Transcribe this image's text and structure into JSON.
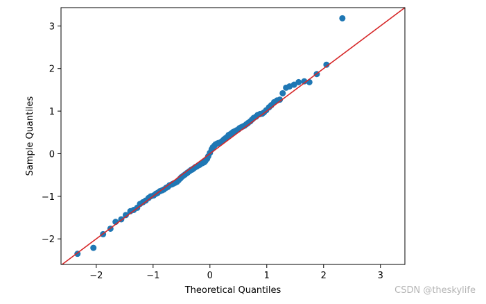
{
  "chart_data": {
    "type": "scatter",
    "title": "",
    "xlabel": "Theoretical Quantiles",
    "ylabel": "Sample Quantiles",
    "xlim": [
      -2.62,
      3.43
    ],
    "ylim": [
      -2.6,
      3.43
    ],
    "xticks": [
      -2,
      -1,
      0,
      1,
      2,
      3
    ],
    "yticks": [
      -2,
      -1,
      0,
      1,
      2,
      3
    ],
    "xtick_labels": [
      "−2",
      "−1",
      "0",
      "1",
      "2",
      "3"
    ],
    "ytick_labels": [
      "−2",
      "−1",
      "0",
      "1",
      "2",
      "3"
    ],
    "grid": false,
    "series": [
      {
        "name": "sample quantiles",
        "color": "#1f77b4",
        "x": [
          -2.33,
          -2.05,
          -1.88,
          -1.75,
          -1.66,
          -1.56,
          -1.48,
          -1.4,
          -1.34,
          -1.28,
          -1.23,
          -1.18,
          -1.13,
          -1.08,
          -1.04,
          -0.99,
          -0.95,
          -0.92,
          -0.88,
          -0.84,
          -0.81,
          -0.77,
          -0.74,
          -0.71,
          -0.67,
          -0.64,
          -0.61,
          -0.58,
          -0.55,
          -0.52,
          -0.5,
          -0.47,
          -0.44,
          -0.41,
          -0.39,
          -0.36,
          -0.33,
          -0.31,
          -0.28,
          -0.25,
          -0.23,
          -0.2,
          -0.18,
          -0.15,
          -0.13,
          -0.1,
          -0.08,
          -0.05,
          -0.03,
          0.0,
          0.03,
          0.05,
          0.08,
          0.1,
          0.13,
          0.15,
          0.18,
          0.2,
          0.23,
          0.25,
          0.28,
          0.31,
          0.33,
          0.36,
          0.39,
          0.41,
          0.44,
          0.47,
          0.5,
          0.52,
          0.55,
          0.58,
          0.61,
          0.64,
          0.67,
          0.71,
          0.74,
          0.77,
          0.81,
          0.84,
          0.88,
          0.92,
          0.95,
          0.99,
          1.04,
          1.08,
          1.13,
          1.18,
          1.23,
          1.28,
          1.34,
          1.4,
          1.48,
          1.56,
          1.66,
          1.75,
          1.88,
          2.05,
          2.33
        ],
        "y": [
          -2.35,
          -2.21,
          -1.89,
          -1.76,
          -1.6,
          -1.54,
          -1.44,
          -1.35,
          -1.32,
          -1.27,
          -1.18,
          -1.14,
          -1.1,
          -1.04,
          -1.0,
          -0.98,
          -0.94,
          -0.92,
          -0.88,
          -0.86,
          -0.84,
          -0.8,
          -0.78,
          -0.74,
          -0.72,
          -0.7,
          -0.68,
          -0.66,
          -0.62,
          -0.58,
          -0.55,
          -0.52,
          -0.49,
          -0.46,
          -0.44,
          -0.41,
          -0.38,
          -0.37,
          -0.34,
          -0.31,
          -0.3,
          -0.27,
          -0.26,
          -0.23,
          -0.22,
          -0.2,
          -0.17,
          -0.12,
          -0.06,
          0.02,
          0.1,
          0.15,
          0.19,
          0.22,
          0.24,
          0.25,
          0.26,
          0.28,
          0.31,
          0.34,
          0.37,
          0.4,
          0.44,
          0.46,
          0.49,
          0.51,
          0.53,
          0.55,
          0.57,
          0.6,
          0.62,
          0.64,
          0.66,
          0.69,
          0.72,
          0.76,
          0.8,
          0.84,
          0.87,
          0.91,
          0.93,
          0.94,
          0.97,
          1.02,
          1.09,
          1.14,
          1.21,
          1.25,
          1.27,
          1.42,
          1.55,
          1.58,
          1.62,
          1.68,
          1.7,
          1.68,
          1.87,
          2.09,
          3.18
        ]
      }
    ],
    "reference_line": {
      "type": "45-degree",
      "slope": 1,
      "intercept": 0,
      "color": "#d62728"
    }
  },
  "watermark": "CSDN @theskylife"
}
